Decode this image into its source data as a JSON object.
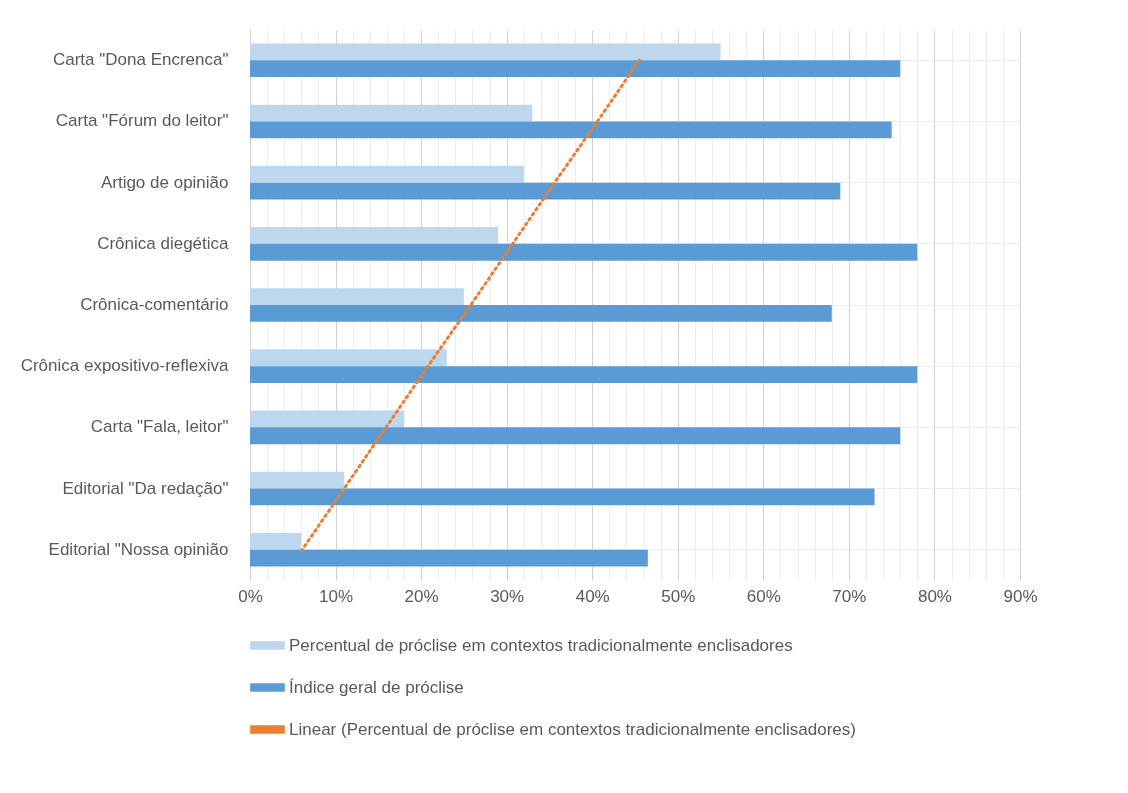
{
  "chart_data": {
    "type": "bar",
    "orientation": "horizontal",
    "categories": [
      "Carta \"Dona Encrenca\"",
      "Carta \"Fórum do leitor\"",
      "Artigo de opinião",
      "Crônica diegética",
      "Crônica-comentário",
      "Crônica expositivo-reflexiva",
      "Carta \"Fala, leitor\"",
      "Editorial \"Da redação\"",
      "Editorial \"Nossa opinião"
    ],
    "series": [
      {
        "name": "Percentual de próclise em contextos tradicionalmente enclisadores",
        "color": "#bdd7ee",
        "values": [
          55,
          33,
          32,
          29,
          25,
          23,
          18,
          11,
          6
        ]
      },
      {
        "name": "Índice geral de próclise",
        "color": "#5b9bd5",
        "values": [
          76,
          75,
          69,
          78,
          68,
          78,
          76,
          73,
          46.5
        ]
      },
      {
        "name": "Linear (Percentual de próclise em contextos tradicionalmente enclisadores)",
        "type": "line",
        "color": "#ed7d31",
        "line_style": "dotted",
        "values": [
          45.5,
          40.6,
          35.6,
          30.7,
          25.8,
          20.8,
          15.9,
          11.0,
          6.1
        ]
      }
    ],
    "xlim": [
      0,
      90
    ],
    "xticks": [
      {
        "value": 0,
        "label": "0%"
      },
      {
        "value": 2,
        "label": null
      },
      {
        "value": 4,
        "label": null
      },
      {
        "value": 6,
        "label": null
      },
      {
        "value": 8,
        "label": null
      },
      {
        "value": 10,
        "label": "10%"
      },
      {
        "value": 12,
        "label": null
      },
      {
        "value": 14,
        "label": null
      },
      {
        "value": 16,
        "label": null
      },
      {
        "value": 18,
        "label": null
      },
      {
        "value": 20,
        "label": "20%"
      },
      {
        "value": 22,
        "label": null
      },
      {
        "value": 24,
        "label": null
      },
      {
        "value": 26,
        "label": null
      },
      {
        "value": 28,
        "label": null
      },
      {
        "value": 30,
        "label": "30%"
      },
      {
        "value": 32,
        "label": null
      },
      {
        "value": 34,
        "label": null
      },
      {
        "value": 36,
        "label": null
      },
      {
        "value": 38,
        "label": null
      },
      {
        "value": 40,
        "label": "40%"
      },
      {
        "value": 42,
        "label": null
      },
      {
        "value": 44,
        "label": null
      },
      {
        "value": 46,
        "label": null
      },
      {
        "value": 48,
        "label": null
      },
      {
        "value": 50,
        "label": "50%"
      },
      {
        "value": 52,
        "label": null
      },
      {
        "value": 54,
        "label": null
      },
      {
        "value": 56,
        "label": null
      },
      {
        "value": 58,
        "label": null
      },
      {
        "value": 60,
        "label": "60%"
      },
      {
        "value": 62,
        "label": null
      },
      {
        "value": 64,
        "label": null
      },
      {
        "value": 66,
        "label": null
      },
      {
        "value": 68,
        "label": null
      },
      {
        "value": 70,
        "label": "70%"
      },
      {
        "value": 72,
        "label": null
      },
      {
        "value": 74,
        "label": null
      },
      {
        "value": 76,
        "label": null
      },
      {
        "value": 78,
        "label": null
      },
      {
        "value": 80,
        "label": "80%"
      },
      {
        "value": 82,
        "label": null
      },
      {
        "value": 84,
        "label": null
      },
      {
        "value": 86,
        "label": null
      },
      {
        "value": 88,
        "label": null
      },
      {
        "value": 90,
        "label": "90%"
      }
    ],
    "grid": true,
    "legend": "bottom"
  }
}
